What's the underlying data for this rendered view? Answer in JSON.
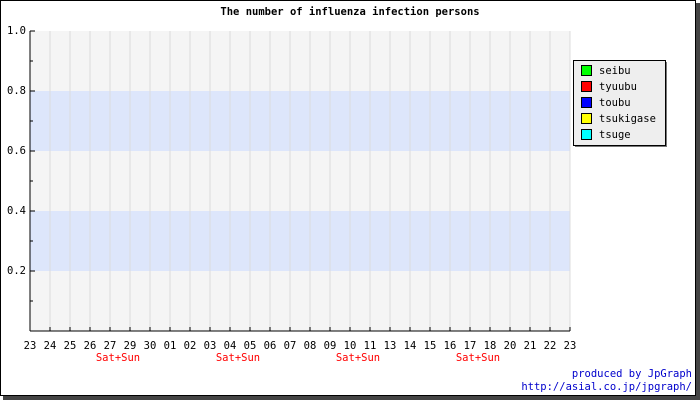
{
  "chart_data": {
    "type": "line",
    "title": "The number of influenza infection persons",
    "categories": [
      "23",
      "24",
      "25",
      "26",
      "27",
      "29",
      "30",
      "01",
      "02",
      "03",
      "04",
      "05",
      "06",
      "07",
      "08",
      "09",
      "10",
      "11",
      "13",
      "14",
      "15",
      "16",
      "17",
      "18",
      "20",
      "21",
      "22",
      "23"
    ],
    "sublabels": [
      null,
      null,
      null,
      null,
      "Sat+Sun",
      null,
      null,
      null,
      null,
      null,
      "Sat+Sun",
      null,
      null,
      null,
      null,
      null,
      "Sat+Sun",
      null,
      null,
      null,
      null,
      null,
      "Sat+Sun",
      null,
      null,
      null,
      null,
      null
    ],
    "sublabel_color": "#ff0000",
    "series": [
      {
        "name": "seibu",
        "color": "#00ff00"
      },
      {
        "name": "tyuubu",
        "color": "#ff0000"
      },
      {
        "name": "toubu",
        "color": "#0000ff"
      },
      {
        "name": "tsukigase",
        "color": "#ffff00"
      },
      {
        "name": "tsuge",
        "color": "#00ffff"
      }
    ],
    "ylim": [
      0,
      1
    ],
    "yticks": [
      0.2,
      0.4,
      0.6,
      0.8,
      {
        "value": 1,
        "label": "1.0"
      }
    ],
    "yminorticks": [
      0.1,
      0.3,
      0.5,
      0.7,
      0.9
    ],
    "bands": [
      [
        0.2,
        0.4
      ],
      [
        0.6,
        0.8
      ]
    ],
    "band_color": "#dde6fb",
    "grid": true,
    "legend": "right",
    "footer": [
      "produced by JpGraph",
      "http://asial.co.jp/jpgraph/"
    ]
  }
}
